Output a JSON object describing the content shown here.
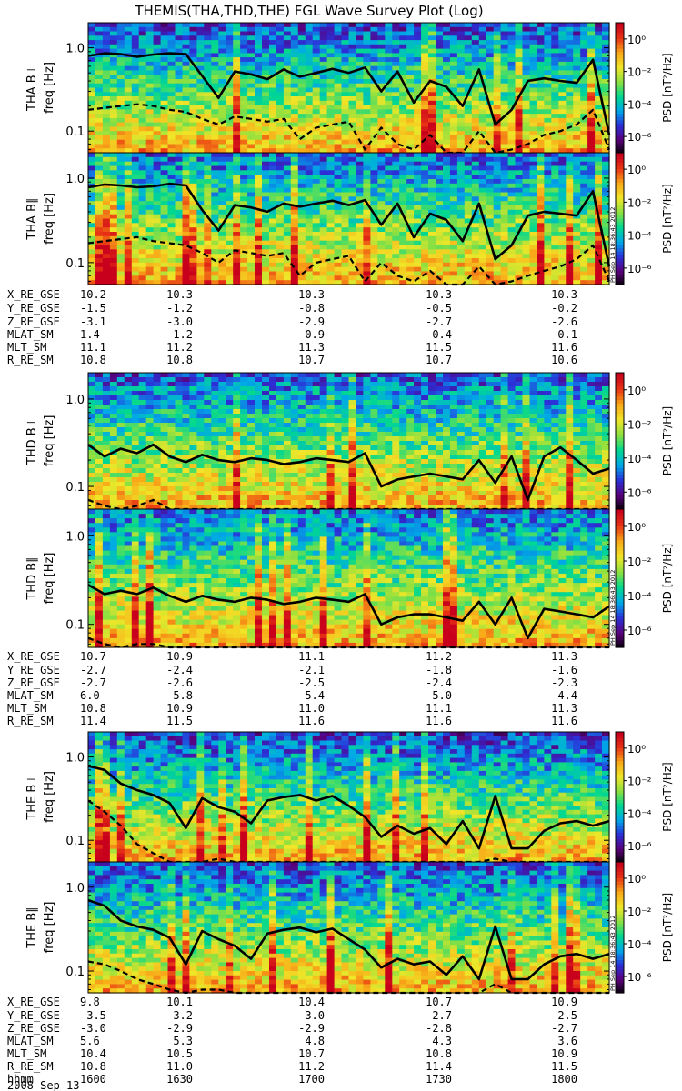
{
  "chart_data": {
    "type": "heatmap",
    "title": "THEMIS(THA,THD,THE) FGL Wave Survey Plot (Log)",
    "colorbar": {
      "label": "PSD [nT²/Hz]",
      "ticks": [
        "10⁰",
        "10⁻²",
        "10⁻⁴",
        "10⁻⁶"
      ],
      "tick_values": [
        0,
        -2,
        -4,
        -6
      ],
      "range_log10": [
        -7,
        1
      ],
      "colormap": [
        "#000000",
        "#5a007a",
        "#2b30d8",
        "#00a8e8",
        "#00d890",
        "#8de040",
        "#f0e628",
        "#f8a818",
        "#e83414",
        "#c8001c"
      ]
    },
    "freq_axis": {
      "label": "freq [Hz]",
      "scale": "log",
      "range_hz": [
        0.055,
        2.0
      ],
      "ticks": [
        "1.0",
        "0.1"
      ],
      "tick_values": [
        1.0,
        0.1
      ]
    },
    "stamp": "PH Sep 14 18:36:43 2012",
    "groups": [
      {
        "probe": "THA",
        "panels": [
          {
            "label": "THA B⊥",
            "solid_line_hz": [
              0.8,
              0.86,
              0.84,
              0.78,
              0.83,
              0.86,
              0.84,
              0.46,
              0.25,
              0.52,
              0.48,
              0.42,
              0.55,
              0.45,
              0.5,
              0.56,
              0.5,
              0.58,
              0.3,
              0.52,
              0.22,
              0.4,
              0.34,
              0.2,
              0.55,
              0.12,
              0.18,
              0.4,
              0.43,
              0.4,
              0.38,
              0.72,
              0.09
            ],
            "dashed_line_hz": [
              0.18,
              0.19,
              0.2,
              0.21,
              0.2,
              0.18,
              0.17,
              0.14,
              0.12,
              0.15,
              0.14,
              0.13,
              0.14,
              0.08,
              0.11,
              0.12,
              0.13,
              0.06,
              0.11,
              0.07,
              0.06,
              0.09,
              0.05,
              0.04,
              0.1,
              0.04,
              0.06,
              0.07,
              0.09,
              0.1,
              0.12,
              0.18,
              0.06
            ],
            "noise_level": 0.55
          },
          {
            "label": "THA B∥",
            "solid_line_hz": [
              0.78,
              0.84,
              0.82,
              0.78,
              0.8,
              0.86,
              0.82,
              0.42,
              0.24,
              0.48,
              0.45,
              0.4,
              0.5,
              0.46,
              0.5,
              0.54,
              0.48,
              0.55,
              0.28,
              0.5,
              0.2,
              0.38,
              0.32,
              0.18,
              0.5,
              0.11,
              0.16,
              0.36,
              0.4,
              0.38,
              0.36,
              0.7,
              0.09
            ],
            "dashed_line_hz": [
              0.17,
              0.18,
              0.19,
              0.2,
              0.18,
              0.17,
              0.16,
              0.13,
              0.1,
              0.14,
              0.13,
              0.12,
              0.13,
              0.07,
              0.1,
              0.11,
              0.12,
              0.06,
              0.1,
              0.07,
              0.06,
              0.08,
              0.05,
              0.04,
              0.09,
              0.04,
              0.06,
              0.07,
              0.08,
              0.09,
              0.11,
              0.16,
              0.06
            ],
            "noise_level": 0.35
          }
        ],
        "ephemeris": {
          "labels": [
            "X_RE_GSE",
            "Y_RE_GSE",
            "Z_RE_GSE",
            "MLAT_SM",
            "MLT_SM",
            "R_RE_SM"
          ],
          "values": [
            [
              "10.2",
              "10.3",
              "10.3",
              "10.3",
              "10.3"
            ],
            [
              "-1.5",
              "-1.2",
              "-0.8",
              "-0.5",
              "-0.2"
            ],
            [
              "-3.1",
              "-3.0",
              "-2.9",
              "-2.7",
              "-2.6"
            ],
            [
              "1.4",
              "1.2",
              "0.9",
              "0.4",
              "-0.1"
            ],
            [
              "11.1",
              "11.2",
              "11.3",
              "11.5",
              "11.6"
            ],
            [
              "10.8",
              "10.8",
              "10.7",
              "10.7",
              "10.6"
            ]
          ]
        }
      },
      {
        "probe": "THD",
        "panels": [
          {
            "label": "THD B⊥",
            "solid_line_hz": [
              0.3,
              0.22,
              0.27,
              0.24,
              0.3,
              0.22,
              0.19,
              0.23,
              0.2,
              0.19,
              0.21,
              0.2,
              0.18,
              0.19,
              0.21,
              0.2,
              0.19,
              0.24,
              0.1,
              0.12,
              0.13,
              0.14,
              0.13,
              0.12,
              0.2,
              0.11,
              0.22,
              0.07,
              0.22,
              0.28,
              0.2,
              0.14,
              0.16
            ],
            "dashed_line_hz": [
              0.07,
              0.06,
              0.04,
              0.06,
              0.07,
              0.05,
              0.04,
              0.03,
              0.03,
              0.03,
              0.03,
              0.03,
              0.03,
              0.03,
              0.03,
              0.03,
              0.03,
              0.03,
              0.03,
              0.03,
              0.03,
              0.03,
              0.03,
              0.03,
              0.03,
              0.03,
              0.03,
              0.03,
              0.03,
              0.03,
              0.03,
              0.03,
              0.03
            ],
            "noise_level": 0.45
          },
          {
            "label": "THD B∥",
            "solid_line_hz": [
              0.28,
              0.22,
              0.24,
              0.22,
              0.26,
              0.21,
              0.18,
              0.21,
              0.19,
              0.18,
              0.2,
              0.19,
              0.17,
              0.18,
              0.2,
              0.19,
              0.18,
              0.22,
              0.1,
              0.12,
              0.13,
              0.13,
              0.12,
              0.11,
              0.18,
              0.1,
              0.2,
              0.07,
              0.15,
              0.14,
              0.13,
              0.12,
              0.16
            ],
            "dashed_line_hz": [
              0.07,
              0.06,
              0.05,
              0.06,
              0.06,
              0.05,
              0.04,
              0.04,
              0.03,
              0.03,
              0.03,
              0.03,
              0.03,
              0.03,
              0.03,
              0.03,
              0.03,
              0.03,
              0.03,
              0.03,
              0.03,
              0.03,
              0.03,
              0.03,
              0.03,
              0.03,
              0.03,
              0.03,
              0.03,
              0.03,
              0.03,
              0.03,
              0.03
            ],
            "noise_level": 0.3
          }
        ],
        "ephemeris": {
          "labels": [
            "X_RE_GSE",
            "Y_RE_GSE",
            "Z_RE_GSE",
            "MLAT_SM",
            "MLT_SM",
            "R_RE_SM"
          ],
          "values": [
            [
              "10.7",
              "10.9",
              "11.1",
              "11.2",
              "11.3"
            ],
            [
              "-2.7",
              "-2.4",
              "-2.1",
              "-1.8",
              "-1.6"
            ],
            [
              "-2.7",
              "-2.6",
              "-2.5",
              "-2.4",
              "-2.3"
            ],
            [
              "6.0",
              "5.8",
              "5.4",
              "5.0",
              "4.4"
            ],
            [
              "10.8",
              "10.9",
              "11.0",
              "11.1",
              "11.3"
            ],
            [
              "11.4",
              "11.5",
              "11.6",
              "11.6",
              "11.6"
            ]
          ]
        }
      },
      {
        "probe": "THE",
        "panels": [
          {
            "label": "THE B⊥",
            "solid_line_hz": [
              0.78,
              0.7,
              0.48,
              0.4,
              0.35,
              0.28,
              0.14,
              0.32,
              0.25,
              0.22,
              0.16,
              0.3,
              0.33,
              0.35,
              0.3,
              0.34,
              0.26,
              0.19,
              0.11,
              0.15,
              0.12,
              0.14,
              0.09,
              0.17,
              0.08,
              0.34,
              0.08,
              0.08,
              0.13,
              0.16,
              0.17,
              0.15,
              0.17
            ],
            "dashed_line_hz": [
              0.3,
              0.22,
              0.15,
              0.09,
              0.07,
              0.05,
              0.04,
              0.05,
              0.06,
              0.05,
              0.04,
              0.04,
              0.04,
              0.04,
              0.04,
              0.04,
              0.04,
              0.04,
              0.04,
              0.04,
              0.04,
              0.04,
              0.04,
              0.04,
              0.04,
              0.06,
              0.04,
              0.04,
              0.04,
              0.04,
              0.04,
              0.04,
              0.04
            ],
            "noise_level": 0.6
          },
          {
            "label": "THE B∥",
            "solid_line_hz": [
              0.7,
              0.6,
              0.4,
              0.34,
              0.31,
              0.25,
              0.12,
              0.3,
              0.24,
              0.2,
              0.14,
              0.28,
              0.31,
              0.33,
              0.29,
              0.32,
              0.24,
              0.18,
              0.11,
              0.14,
              0.12,
              0.13,
              0.09,
              0.15,
              0.08,
              0.34,
              0.08,
              0.08,
              0.12,
              0.15,
              0.16,
              0.14,
              0.16
            ],
            "dashed_line_hz": [
              0.13,
              0.12,
              0.1,
              0.08,
              0.07,
              0.06,
              0.05,
              0.06,
              0.06,
              0.05,
              0.05,
              0.05,
              0.05,
              0.05,
              0.05,
              0.05,
              0.05,
              0.05,
              0.05,
              0.05,
              0.05,
              0.05,
              0.05,
              0.05,
              0.05,
              0.07,
              0.05,
              0.05,
              0.05,
              0.05,
              0.05,
              0.05,
              0.05
            ],
            "noise_level": 0.5
          }
        ],
        "ephemeris": {
          "labels": [
            "X_RE_GSE",
            "Y_RE_GSE",
            "Z_RE_GSE",
            "MLAT_SM",
            "MLT_SM",
            "R_RE_SM",
            "hhmm"
          ],
          "values": [
            [
              "9.8",
              "10.1",
              "10.4",
              "10.7",
              "10.9"
            ],
            [
              "-3.5",
              "-3.2",
              "-3.0",
              "-2.7",
              "-2.5"
            ],
            [
              "-3.0",
              "-2.9",
              "-2.9",
              "-2.8",
              "-2.7"
            ],
            [
              "5.6",
              "5.3",
              "4.8",
              "4.3",
              "3.6"
            ],
            [
              "10.4",
              "10.5",
              "10.7",
              "10.8",
              "10.9"
            ],
            [
              "10.8",
              "11.0",
              "11.2",
              "11.4",
              "11.5"
            ],
            [
              "1600",
              "1630",
              "1700",
              "1730",
              "1800"
            ]
          ],
          "date": "2008 Sep 13"
        }
      }
    ]
  }
}
